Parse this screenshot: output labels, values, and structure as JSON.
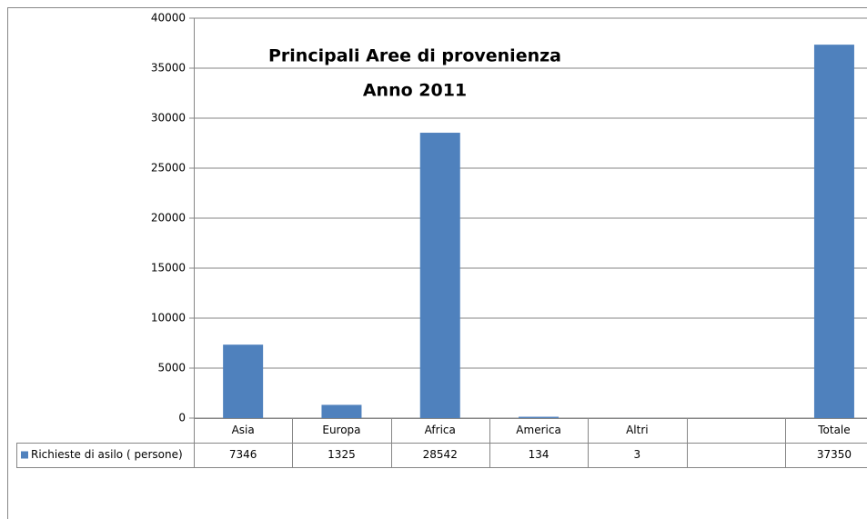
{
  "chart_data": {
    "type": "bar",
    "title": "Principali Aree di provenienza",
    "subtitle": "Anno 2011",
    "categories": [
      "Asia",
      "Europa",
      "Africa",
      "America",
      "Altri",
      null,
      "Totale"
    ],
    "series": [
      {
        "name": "Richieste di asilo ( persone)",
        "color": "#4f81bd",
        "values": [
          7346,
          1325,
          28542,
          134,
          3,
          null,
          37350
        ]
      }
    ],
    "ylim": [
      0,
      40000
    ],
    "yticks": [
      0,
      5000,
      10000,
      15000,
      20000,
      25000,
      30000,
      35000,
      40000
    ],
    "grid": true
  }
}
